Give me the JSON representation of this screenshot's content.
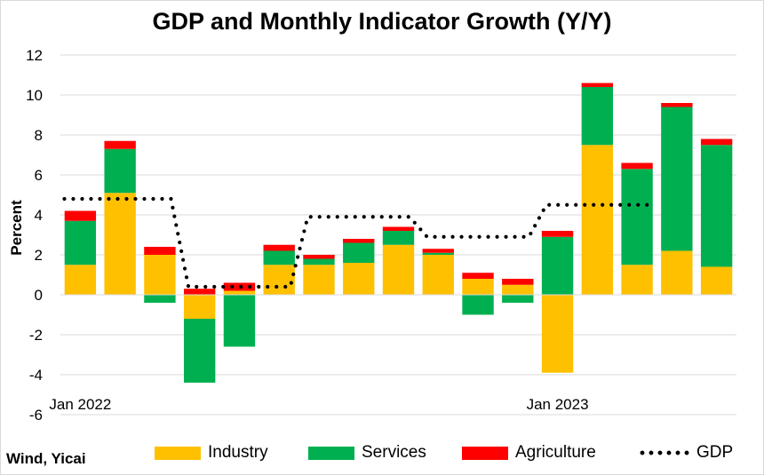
{
  "chart_data": {
    "type": "bar",
    "stacked": true,
    "title": "GDP and Monthly Indicator Growth (Y/Y)",
    "ylabel": "Percent",
    "ylim": [
      -6,
      12
    ],
    "yticks": [
      12,
      10,
      8,
      6,
      4,
      2,
      0,
      -2,
      -4,
      -6
    ],
    "x_tick_labels": [
      {
        "index": 0,
        "label": "Jan 2022"
      },
      {
        "index": 12,
        "label": "Jan 2023"
      }
    ],
    "grid": true,
    "legend_placement": "bottom",
    "series": [
      {
        "name": "Industry",
        "color": "#FFC000",
        "values": [
          1.5,
          5.1,
          2.0,
          -1.2,
          0.2,
          1.5,
          1.5,
          1.6,
          2.5,
          2.0,
          0.8,
          0.5,
          -3.9,
          7.5,
          1.5,
          2.2,
          1.4
        ]
      },
      {
        "name": "Services",
        "color": "#00B050",
        "values": [
          2.2,
          2.2,
          -0.4,
          -3.2,
          -2.6,
          0.7,
          0.3,
          1.0,
          0.7,
          0.1,
          -1.0,
          -0.4,
          2.9,
          2.9,
          4.8,
          7.2,
          6.1
        ]
      },
      {
        "name": "Agriculture",
        "color": "#FF0000",
        "values": [
          0.5,
          0.4,
          0.4,
          0.3,
          0.4,
          0.3,
          0.2,
          0.2,
          0.2,
          0.2,
          0.3,
          0.3,
          0.3,
          0.2,
          0.3,
          0.2,
          0.3
        ]
      },
      {
        "name": "GDP",
        "type": "line",
        "style": "dotted",
        "color": "#000000",
        "values": [
          4.8,
          4.8,
          4.8,
          0.4,
          0.4,
          0.4,
          3.9,
          3.9,
          3.9,
          2.9,
          2.9,
          2.9,
          4.5,
          4.5,
          4.5,
          null,
          null
        ]
      }
    ]
  },
  "source_note": "Wind, Yicai"
}
